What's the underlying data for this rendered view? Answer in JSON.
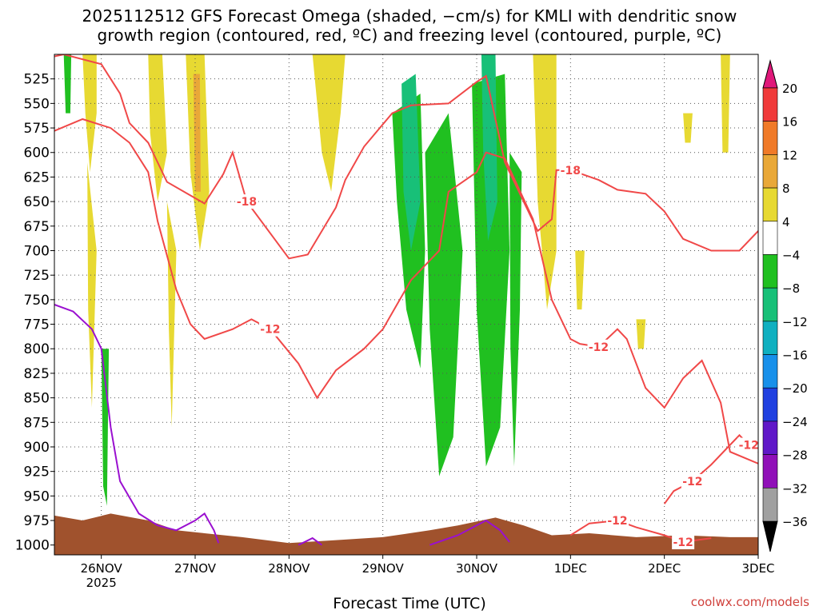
{
  "title_line1": "2025112512 GFS Forecast Omega (shaded, −cm/s) for KMLI with dendritic snow",
  "title_line2": "growth region (contoured, red, ºC) and freezing level (contoured, purple, ºC)",
  "xlabel": "Forecast Time (UTC)",
  "credit": "coolwx.com/models",
  "chart_data": {
    "type": "heatmap",
    "x_ticks": [
      {
        "t": 0.5,
        "label": "26NOV",
        "sub": "2025"
      },
      {
        "t": 1.5,
        "label": "27NOV"
      },
      {
        "t": 2.5,
        "label": "28NOV"
      },
      {
        "t": 3.5,
        "label": "29NOV"
      },
      {
        "t": 4.5,
        "label": "30NOV"
      },
      {
        "t": 5.5,
        "label": "1DEC"
      },
      {
        "t": 6.5,
        "label": "2DEC"
      },
      {
        "t": 7.5,
        "label": "3DEC"
      }
    ],
    "xlim": [
      0,
      7.5
    ],
    "y_ticks": [
      525,
      550,
      575,
      600,
      625,
      650,
      675,
      700,
      725,
      750,
      775,
      800,
      825,
      850,
      875,
      900,
      925,
      950,
      975,
      1000
    ],
    "ylim": [
      1010,
      500
    ],
    "colorbar": {
      "levels": [
        20,
        16,
        12,
        8,
        4,
        -4,
        -8,
        -12,
        -16,
        -20,
        -24,
        -28,
        -32,
        -36
      ],
      "colors": [
        "#f03a3a",
        "#f07a28",
        "#e9a838",
        "#e7d932",
        "#ffffff",
        "#20c020",
        "#18c078",
        "#10b0c0",
        "#1890ea",
        "#2040e0",
        "#6018c8",
        "#9010b8",
        "#a0a0a0"
      ],
      "top_color": "#e0187a",
      "bottom_color": "#000000"
    },
    "red_contours": [
      {
        "label": "-18",
        "points": [
          [
            0.0,
            502
          ],
          [
            0.1,
            500
          ],
          [
            0.5,
            510
          ],
          [
            0.7,
            540
          ],
          [
            0.8,
            570
          ],
          [
            1.0,
            590
          ],
          [
            1.2,
            630
          ],
          [
            1.6,
            652
          ],
          [
            1.8,
            622
          ],
          [
            1.9,
            600
          ],
          [
            2.05,
            650
          ],
          [
            2.5,
            708
          ],
          [
            2.7,
            704
          ],
          [
            3.0,
            656
          ],
          [
            3.1,
            628
          ],
          [
            3.3,
            594
          ],
          [
            3.6,
            560
          ],
          [
            3.8,
            552
          ],
          [
            4.2,
            550
          ],
          [
            4.5,
            528
          ],
          [
            4.6,
            522
          ],
          [
            4.8,
            610
          ],
          [
            5.0,
            650
          ],
          [
            5.15,
            680
          ],
          [
            5.3,
            668
          ],
          [
            5.35,
            618
          ],
          [
            5.5,
            618
          ],
          [
            5.8,
            628
          ],
          [
            6.0,
            638
          ],
          [
            6.3,
            642
          ],
          [
            6.5,
            660
          ],
          [
            6.7,
            688
          ],
          [
            7.0,
            700
          ],
          [
            7.3,
            700
          ],
          [
            7.5,
            680
          ]
        ]
      },
      {
        "label": "-12",
        "points": [
          [
            0.0,
            578
          ],
          [
            0.3,
            566
          ],
          [
            0.6,
            575
          ],
          [
            0.8,
            590
          ],
          [
            1.0,
            620
          ],
          [
            1.1,
            670
          ],
          [
            1.3,
            740
          ],
          [
            1.45,
            775
          ],
          [
            1.6,
            790
          ],
          [
            1.9,
            780
          ],
          [
            2.1,
            770
          ],
          [
            2.3,
            780
          ],
          [
            2.6,
            815
          ],
          [
            2.8,
            850
          ],
          [
            3.0,
            822
          ],
          [
            3.3,
            800
          ],
          [
            3.5,
            780
          ],
          [
            3.8,
            730
          ],
          [
            4.1,
            700
          ],
          [
            4.2,
            640
          ],
          [
            4.5,
            620
          ],
          [
            4.6,
            600
          ],
          [
            4.8,
            606
          ],
          [
            5.1,
            668
          ],
          [
            5.3,
            750
          ],
          [
            5.5,
            790
          ],
          [
            5.6,
            795
          ],
          [
            5.8,
            798
          ],
          [
            6.0,
            780
          ],
          [
            6.1,
            790
          ],
          [
            6.3,
            840
          ],
          [
            6.5,
            860
          ],
          [
            6.7,
            830
          ],
          [
            6.9,
            812
          ],
          [
            7.1,
            855
          ],
          [
            7.2,
            905
          ],
          [
            7.5,
            917
          ]
        ]
      },
      {
        "label": "-12",
        "points": [
          [
            6.5,
            958
          ],
          [
            6.6,
            945
          ],
          [
            6.8,
            935
          ],
          [
            7.0,
            918
          ],
          [
            7.2,
            898
          ],
          [
            7.3,
            888
          ],
          [
            7.4,
            898
          ],
          [
            7.5,
            905
          ]
        ]
      },
      {
        "label": "-12",
        "points": [
          [
            5.5,
            990
          ],
          [
            5.7,
            978
          ],
          [
            6.0,
            975
          ],
          [
            6.2,
            982
          ],
          [
            6.5,
            990
          ],
          [
            6.7,
            997
          ],
          [
            7.0,
            993
          ]
        ]
      }
    ],
    "purple_contours": [
      {
        "label": "",
        "points": [
          [
            0.0,
            755
          ],
          [
            0.2,
            762
          ],
          [
            0.4,
            780
          ],
          [
            0.5,
            800
          ],
          [
            0.6,
            880
          ],
          [
            0.7,
            935
          ],
          [
            0.9,
            968
          ],
          [
            1.1,
            980
          ],
          [
            1.3,
            985
          ],
          [
            1.5,
            975
          ],
          [
            1.6,
            968
          ],
          [
            1.7,
            985
          ],
          [
            1.75,
            998
          ]
        ]
      },
      {
        "label": "",
        "points": [
          [
            2.6,
            1000
          ],
          [
            2.75,
            993
          ],
          [
            2.85,
            1000
          ]
        ]
      },
      {
        "label": "",
        "points": [
          [
            4.0,
            1000
          ],
          [
            4.3,
            990
          ],
          [
            4.6,
            975
          ],
          [
            4.75,
            985
          ],
          [
            4.85,
            997
          ]
        ]
      }
    ],
    "shaded_regions": [
      {
        "level": 4,
        "points": [
          [
            0.3,
            500
          ],
          [
            0.45,
            500
          ],
          [
            0.45,
            560
          ],
          [
            0.38,
            620
          ],
          [
            0.33,
            560
          ]
        ]
      },
      {
        "level": 4,
        "points": [
          [
            1.0,
            500
          ],
          [
            1.15,
            500
          ],
          [
            1.2,
            600
          ],
          [
            1.1,
            650
          ],
          [
            1.02,
            580
          ]
        ]
      },
      {
        "level": 4,
        "points": [
          [
            1.4,
            500
          ],
          [
            1.6,
            500
          ],
          [
            1.65,
            640
          ],
          [
            1.55,
            700
          ],
          [
            1.45,
            620
          ]
        ]
      },
      {
        "level": 8,
        "points": [
          [
            1.48,
            520
          ],
          [
            1.55,
            520
          ],
          [
            1.56,
            640
          ],
          [
            1.5,
            640
          ]
        ]
      },
      {
        "level": 4,
        "points": [
          [
            2.75,
            500
          ],
          [
            3.1,
            500
          ],
          [
            3.05,
            560
          ],
          [
            2.95,
            640
          ],
          [
            2.85,
            600
          ]
        ]
      },
      {
        "level": 4,
        "points": [
          [
            5.1,
            500
          ],
          [
            5.35,
            500
          ],
          [
            5.35,
            700
          ],
          [
            5.25,
            760
          ],
          [
            5.15,
            650
          ]
        ]
      },
      {
        "level": 4,
        "points": [
          [
            5.55,
            700
          ],
          [
            5.65,
            700
          ],
          [
            5.62,
            760
          ],
          [
            5.57,
            760
          ]
        ]
      },
      {
        "level": 4,
        "points": [
          [
            6.7,
            560
          ],
          [
            6.8,
            560
          ],
          [
            6.78,
            590
          ],
          [
            6.72,
            590
          ]
        ]
      },
      {
        "level": 4,
        "points": [
          [
            7.1,
            500
          ],
          [
            7.2,
            500
          ],
          [
            7.18,
            600
          ],
          [
            7.12,
            600
          ]
        ]
      },
      {
        "level": 4,
        "points": [
          [
            6.2,
            770
          ],
          [
            6.3,
            770
          ],
          [
            6.28,
            800
          ],
          [
            6.22,
            800
          ]
        ]
      },
      {
        "level": 4,
        "points": [
          [
            0.35,
            610
          ],
          [
            0.45,
            700
          ],
          [
            0.4,
            860
          ],
          [
            0.36,
            760
          ]
        ]
      },
      {
        "level": 4,
        "points": [
          [
            1.2,
            650
          ],
          [
            1.3,
            700
          ],
          [
            1.25,
            880
          ],
          [
            1.22,
            780
          ]
        ]
      },
      {
        "level": -4,
        "points": [
          [
            0.5,
            800
          ],
          [
            0.58,
            800
          ],
          [
            0.56,
            960
          ],
          [
            0.52,
            940
          ]
        ]
      },
      {
        "level": -4,
        "points": [
          [
            3.6,
            560
          ],
          [
            3.9,
            540
          ],
          [
            3.95,
            700
          ],
          [
            3.9,
            820
          ],
          [
            3.75,
            760
          ],
          [
            3.65,
            650
          ]
        ]
      },
      {
        "level": -8,
        "points": [
          [
            3.7,
            530
          ],
          [
            3.85,
            520
          ],
          [
            3.9,
            650
          ],
          [
            3.8,
            700
          ],
          [
            3.72,
            640
          ]
        ]
      },
      {
        "level": -4,
        "points": [
          [
            3.95,
            600
          ],
          [
            4.2,
            560
          ],
          [
            4.35,
            700
          ],
          [
            4.25,
            890
          ],
          [
            4.1,
            930
          ],
          [
            4.0,
            780
          ]
        ]
      },
      {
        "level": -4,
        "points": [
          [
            4.45,
            530
          ],
          [
            4.8,
            520
          ],
          [
            4.85,
            700
          ],
          [
            4.75,
            880
          ],
          [
            4.6,
            920
          ],
          [
            4.5,
            760
          ]
        ]
      },
      {
        "level": -8,
        "points": [
          [
            4.55,
            500
          ],
          [
            4.7,
            500
          ],
          [
            4.72,
            650
          ],
          [
            4.62,
            690
          ],
          [
            4.57,
            600
          ]
        ]
      },
      {
        "level": -4,
        "points": [
          [
            4.85,
            600
          ],
          [
            4.98,
            620
          ],
          [
            4.96,
            760
          ],
          [
            4.9,
            920
          ],
          [
            4.86,
            800
          ]
        ]
      },
      {
        "level": -4,
        "points": [
          [
            0.1,
            500
          ],
          [
            0.18,
            500
          ],
          [
            0.17,
            560
          ],
          [
            0.12,
            560
          ]
        ]
      }
    ],
    "terrain_color": "#a0522d",
    "terrain_points": [
      [
        0.0,
        970
      ],
      [
        0.3,
        975
      ],
      [
        0.6,
        968
      ],
      [
        1.0,
        975
      ],
      [
        1.3,
        985
      ],
      [
        1.6,
        988
      ],
      [
        2.0,
        992
      ],
      [
        2.5,
        998
      ],
      [
        3.0,
        995
      ],
      [
        3.5,
        992
      ],
      [
        4.0,
        985
      ],
      [
        4.3,
        980
      ],
      [
        4.7,
        972
      ],
      [
        5.0,
        980
      ],
      [
        5.3,
        990
      ],
      [
        5.7,
        988
      ],
      [
        6.2,
        992
      ],
      [
        6.7,
        990
      ],
      [
        7.2,
        992
      ],
      [
        7.5,
        992
      ]
    ]
  }
}
